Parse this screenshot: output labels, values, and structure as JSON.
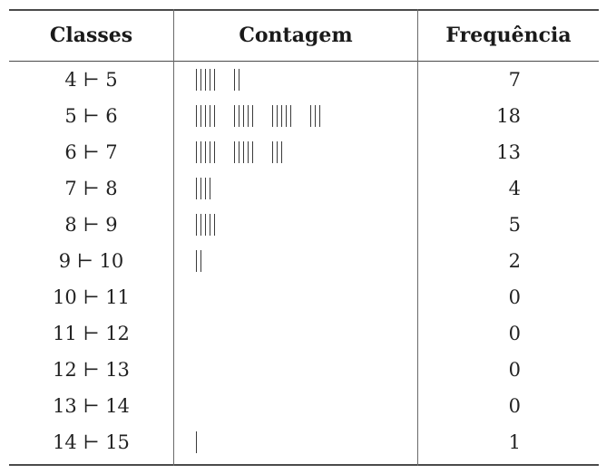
{
  "headers": {
    "classes": "Classes",
    "contagem": "Contagem",
    "frequencia": "Frequência"
  },
  "rows": [
    {
      "classe": "4 ⊢ 5",
      "tally": 7,
      "frequencia": "7"
    },
    {
      "classe": "5 ⊢ 6",
      "tally": 18,
      "frequencia": "18"
    },
    {
      "classe": "6 ⊢ 7",
      "tally": 13,
      "frequencia": "13"
    },
    {
      "classe": "7 ⊢ 8",
      "tally": 4,
      "frequencia": "4"
    },
    {
      "classe": "8 ⊢ 9",
      "tally": 5,
      "frequencia": "5"
    },
    {
      "classe": "9 ⊢ 10",
      "tally": 2,
      "frequencia": "2"
    },
    {
      "classe": "10 ⊢ 11",
      "tally": 0,
      "frequencia": "0"
    },
    {
      "classe": "11 ⊢ 12",
      "tally": 0,
      "frequencia": "0"
    },
    {
      "classe": "12 ⊢ 13",
      "tally": 0,
      "frequencia": "0"
    },
    {
      "classe": "13 ⊢ 14",
      "tally": 0,
      "frequencia": "0"
    },
    {
      "classe": "14 ⊢ 15",
      "tally": 1,
      "frequencia": "1"
    }
  ]
}
